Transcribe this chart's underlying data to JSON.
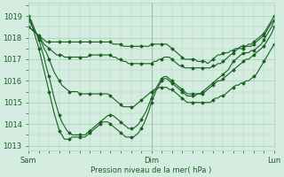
{
  "title": "Pression niveau de la mer( hPa )",
  "bg_color": "#d4ede0",
  "grid_color": "#a8d4be",
  "line_color": "#1a6020",
  "text_color": "#1a6020",
  "ylim": [
    1012.8,
    1019.6
  ],
  "yticks": [
    1013,
    1014,
    1015,
    1016,
    1017,
    1018,
    1019
  ],
  "xtick_positions": [
    0,
    48,
    96
  ],
  "xtick_labels": [
    "Sam",
    "Dim",
    "Lun"
  ],
  "n_points": 97,
  "lines": [
    [
      1018.5,
      1018.4,
      1018.3,
      1018.2,
      1018.1,
      1018.0,
      1017.9,
      1017.8,
      1017.8,
      1017.8,
      1017.8,
      1017.8,
      1017.8,
      1017.8,
      1017.8,
      1017.8,
      1017.8,
      1017.8,
      1017.8,
      1017.8,
      1017.8,
      1017.8,
      1017.8,
      1017.8,
      1017.8,
      1017.8,
      1017.8,
      1017.8,
      1017.8,
      1017.8,
      1017.8,
      1017.8,
      1017.8,
      1017.7,
      1017.7,
      1017.7,
      1017.7,
      1017.6,
      1017.6,
      1017.6,
      1017.6,
      1017.6,
      1017.6,
      1017.6,
      1017.6,
      1017.6,
      1017.6,
      1017.6,
      1017.7,
      1017.7,
      1017.7,
      1017.7,
      1017.7,
      1017.7,
      1017.7,
      1017.6,
      1017.5,
      1017.4,
      1017.3,
      1017.2,
      1017.1,
      1017.0,
      1017.0,
      1017.0,
      1017.0,
      1017.0,
      1016.9,
      1016.9,
      1016.9,
      1016.9,
      1016.8,
      1016.9,
      1017.0,
      1017.1,
      1017.2,
      1017.2,
      1017.3,
      1017.3,
      1017.3,
      1017.4,
      1017.4,
      1017.5,
      1017.5,
      1017.6,
      1017.6,
      1017.6,
      1017.7,
      1017.7,
      1017.8,
      1017.9,
      1018.0,
      1018.1,
      1018.2,
      1018.4,
      1018.6,
      1018.8,
      1019.0
    ],
    [
      1018.5,
      1018.4,
      1018.3,
      1018.2,
      1018.0,
      1017.9,
      1017.7,
      1017.6,
      1017.5,
      1017.4,
      1017.3,
      1017.2,
      1017.2,
      1017.2,
      1017.1,
      1017.1,
      1017.1,
      1017.1,
      1017.1,
      1017.1,
      1017.1,
      1017.1,
      1017.1,
      1017.1,
      1017.2,
      1017.2,
      1017.2,
      1017.2,
      1017.2,
      1017.2,
      1017.2,
      1017.2,
      1017.2,
      1017.1,
      1017.1,
      1017.0,
      1017.0,
      1016.9,
      1016.9,
      1016.8,
      1016.8,
      1016.8,
      1016.8,
      1016.8,
      1016.8,
      1016.8,
      1016.8,
      1016.8,
      1016.8,
      1016.9,
      1016.9,
      1017.0,
      1017.0,
      1017.1,
      1017.1,
      1017.1,
      1017.0,
      1016.9,
      1016.8,
      1016.7,
      1016.7,
      1016.6,
      1016.6,
      1016.6,
      1016.6,
      1016.6,
      1016.6,
      1016.6,
      1016.6,
      1016.6,
      1016.6,
      1016.6,
      1016.7,
      1016.7,
      1016.8,
      1016.8,
      1016.9,
      1017.0,
      1017.1,
      1017.2,
      1017.3,
      1017.4,
      1017.5,
      1017.5,
      1017.5,
      1017.6,
      1017.6,
      1017.6,
      1017.7,
      1017.8,
      1017.9,
      1018.0,
      1018.1,
      1018.3,
      1018.5,
      1018.7,
      1018.8
    ],
    [
      1018.8,
      1018.6,
      1018.4,
      1018.2,
      1018.0,
      1017.8,
      1017.5,
      1017.3,
      1017.0,
      1016.7,
      1016.4,
      1016.2,
      1016.0,
      1015.8,
      1015.7,
      1015.6,
      1015.5,
      1015.5,
      1015.5,
      1015.5,
      1015.4,
      1015.4,
      1015.4,
      1015.4,
      1015.4,
      1015.4,
      1015.4,
      1015.4,
      1015.4,
      1015.4,
      1015.4,
      1015.4,
      1015.3,
      1015.2,
      1015.1,
      1015.0,
      1014.9,
      1014.8,
      1014.8,
      1014.8,
      1014.8,
      1014.8,
      1014.9,
      1015.0,
      1015.1,
      1015.2,
      1015.3,
      1015.4,
      1015.5,
      1015.6,
      1015.6,
      1015.7,
      1015.7,
      1015.7,
      1015.7,
      1015.6,
      1015.6,
      1015.5,
      1015.4,
      1015.3,
      1015.2,
      1015.1,
      1015.0,
      1015.0,
      1015.0,
      1015.0,
      1015.0,
      1015.0,
      1015.0,
      1015.0,
      1015.0,
      1015.0,
      1015.1,
      1015.2,
      1015.2,
      1015.3,
      1015.3,
      1015.4,
      1015.5,
      1015.6,
      1015.7,
      1015.8,
      1015.8,
      1015.9,
      1015.9,
      1016.0,
      1016.0,
      1016.1,
      1016.2,
      1016.3,
      1016.5,
      1016.7,
      1016.9,
      1017.1,
      1017.3,
      1017.5,
      1017.7
    ],
    [
      1019.0,
      1018.8,
      1018.5,
      1018.2,
      1017.9,
      1017.5,
      1017.1,
      1016.6,
      1016.2,
      1015.7,
      1015.2,
      1014.8,
      1014.4,
      1014.1,
      1013.9,
      1013.7,
      1013.6,
      1013.5,
      1013.5,
      1013.5,
      1013.5,
      1013.5,
      1013.5,
      1013.6,
      1013.7,
      1013.8,
      1013.9,
      1014.0,
      1014.1,
      1014.2,
      1014.3,
      1014.4,
      1014.4,
      1014.4,
      1014.3,
      1014.2,
      1014.1,
      1014.0,
      1013.9,
      1013.8,
      1013.8,
      1013.8,
      1013.9,
      1014.0,
      1014.2,
      1014.4,
      1014.6,
      1014.9,
      1015.2,
      1015.5,
      1015.7,
      1015.9,
      1016.1,
      1016.2,
      1016.2,
      1016.1,
      1016.0,
      1015.9,
      1015.8,
      1015.7,
      1015.6,
      1015.5,
      1015.4,
      1015.4,
      1015.4,
      1015.4,
      1015.4,
      1015.4,
      1015.4,
      1015.5,
      1015.6,
      1015.7,
      1015.8,
      1015.9,
      1016.0,
      1016.0,
      1016.1,
      1016.2,
      1016.3,
      1016.4,
      1016.5,
      1016.6,
      1016.7,
      1016.8,
      1016.9,
      1017.0,
      1017.0,
      1017.1,
      1017.2,
      1017.3,
      1017.4,
      1017.5,
      1017.6,
      1017.8,
      1018.0,
      1018.2,
      1018.5
    ],
    [
      1019.0,
      1018.7,
      1018.3,
      1017.9,
      1017.5,
      1017.0,
      1016.5,
      1016.0,
      1015.5,
      1015.0,
      1014.5,
      1014.1,
      1013.7,
      1013.5,
      1013.3,
      1013.3,
      1013.3,
      1013.4,
      1013.4,
      1013.4,
      1013.4,
      1013.4,
      1013.4,
      1013.5,
      1013.6,
      1013.7,
      1013.8,
      1013.9,
      1014.0,
      1014.1,
      1014.1,
      1014.1,
      1014.0,
      1013.9,
      1013.8,
      1013.7,
      1013.6,
      1013.5,
      1013.4,
      1013.4,
      1013.4,
      1013.4,
      1013.5,
      1013.6,
      1013.8,
      1014.0,
      1014.3,
      1014.6,
      1015.0,
      1015.3,
      1015.6,
      1015.8,
      1016.0,
      1016.1,
      1016.1,
      1016.0,
      1015.9,
      1015.8,
      1015.7,
      1015.6,
      1015.5,
      1015.4,
      1015.3,
      1015.3,
      1015.3,
      1015.3,
      1015.4,
      1015.4,
      1015.5,
      1015.6,
      1015.7,
      1015.8,
      1015.9,
      1016.0,
      1016.1,
      1016.2,
      1016.3,
      1016.4,
      1016.5,
      1016.7,
      1016.9,
      1017.0,
      1017.1,
      1017.2,
      1017.3,
      1017.3,
      1017.3,
      1017.4,
      1017.4,
      1017.5,
      1017.6,
      1017.7,
      1017.9,
      1018.1,
      1018.3,
      1018.5,
      1018.8
    ]
  ]
}
